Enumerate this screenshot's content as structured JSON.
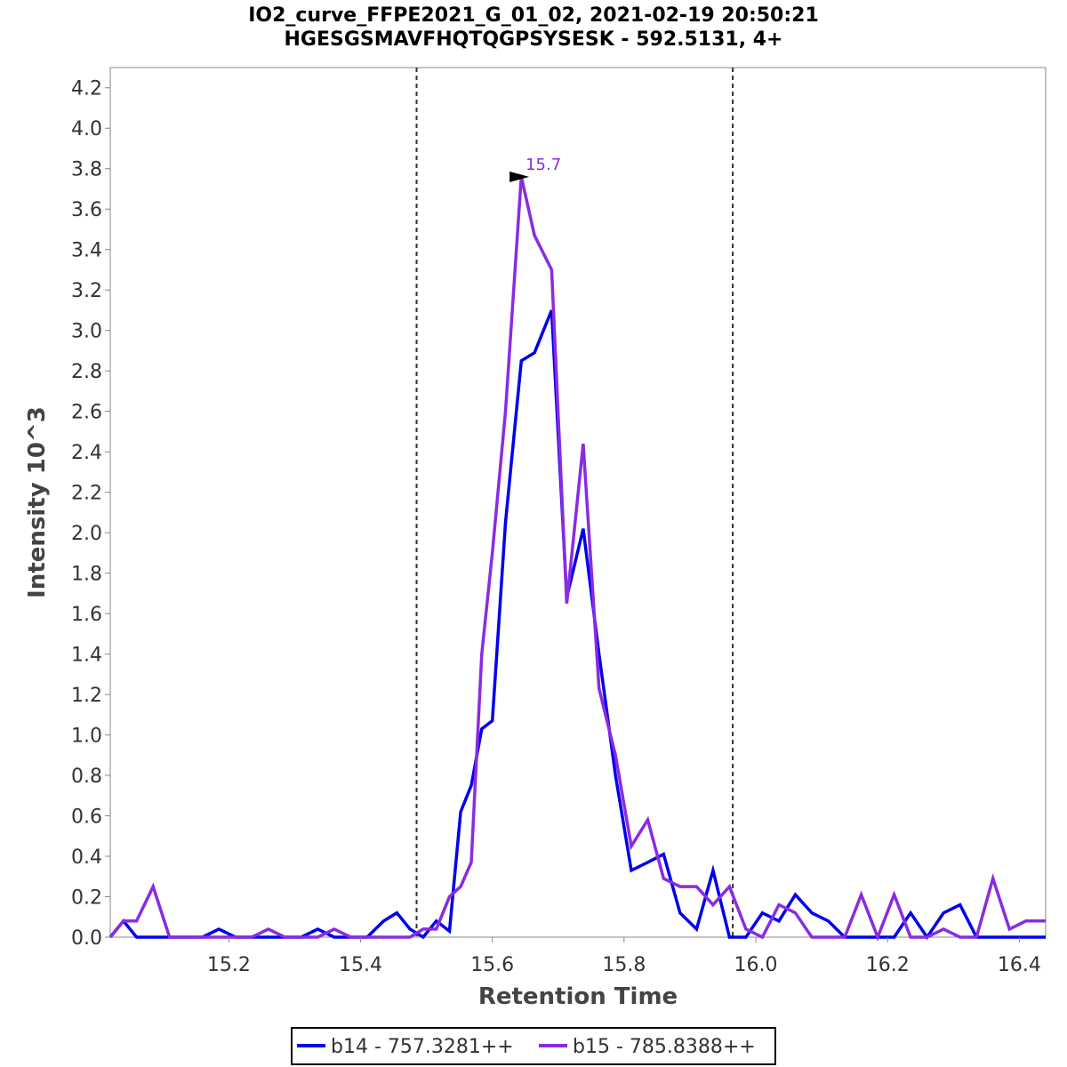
{
  "chart_data": {
    "type": "line",
    "title": "IO2_curve_FFPE2021_G_01_02, 2021-02-19 20:50:21",
    "subtitle": "HGESGSMAVFHQTQGPSYSESK - 592.5131, 4+",
    "xlabel": "Retention Time",
    "ylabel": "Intensity 10^3",
    "xlim": [
      15.02,
      16.44
    ],
    "ylim": [
      0,
      4.3
    ],
    "x_ticks": [
      "15.2",
      "15.4",
      "15.6",
      "15.8",
      "16.0",
      "16.2",
      "16.4"
    ],
    "y_ticks": [
      "0.0",
      "0.2",
      "0.4",
      "0.6",
      "0.8",
      "1.0",
      "1.2",
      "1.4",
      "1.6",
      "1.8",
      "2.0",
      "2.2",
      "2.4",
      "2.6",
      "2.8",
      "3.0",
      "3.2",
      "3.4",
      "3.6",
      "3.8",
      "4.0",
      "4.2"
    ],
    "grid": false,
    "legend_position": "bottom",
    "boundary_lines": [
      15.485,
      15.965
    ],
    "peak_annotation": {
      "label": "15.7",
      "x": 15.664,
      "y": 3.76,
      "color": "#8a2be2"
    },
    "series": [
      {
        "name": "b14 - 757.3281++",
        "color": "#0000ee",
        "points": [
          [
            15.02,
            0.0
          ],
          [
            15.04,
            0.08
          ],
          [
            15.06,
            0.0
          ],
          [
            15.085,
            0.0
          ],
          [
            15.11,
            0.0
          ],
          [
            15.135,
            0.0
          ],
          [
            15.16,
            0.0
          ],
          [
            15.185,
            0.04
          ],
          [
            15.21,
            0.0
          ],
          [
            15.235,
            0.0
          ],
          [
            15.26,
            0.0
          ],
          [
            15.285,
            0.0
          ],
          [
            15.31,
            0.0
          ],
          [
            15.335,
            0.04
          ],
          [
            15.36,
            0.0
          ],
          [
            15.385,
            0.0
          ],
          [
            15.41,
            0.0
          ],
          [
            15.435,
            0.08
          ],
          [
            15.455,
            0.12
          ],
          [
            15.475,
            0.04
          ],
          [
            15.495,
            0.0
          ],
          [
            15.515,
            0.08
          ],
          [
            15.535,
            0.03
          ],
          [
            15.552,
            0.62
          ],
          [
            15.568,
            0.75
          ],
          [
            15.584,
            1.03
          ],
          [
            15.6,
            1.07
          ],
          [
            15.62,
            2.05
          ],
          [
            15.644,
            2.85
          ],
          [
            15.664,
            2.89
          ],
          [
            15.69,
            3.1
          ],
          [
            15.713,
            1.68
          ],
          [
            15.738,
            2.02
          ],
          [
            15.762,
            1.4
          ],
          [
            15.787,
            0.8
          ],
          [
            15.811,
            0.33
          ],
          [
            15.836,
            0.37
          ],
          [
            15.86,
            0.41
          ],
          [
            15.885,
            0.12
          ],
          [
            15.91,
            0.04
          ],
          [
            15.935,
            0.33
          ],
          [
            15.96,
            0.0
          ],
          [
            15.985,
            0.0
          ],
          [
            16.01,
            0.12
          ],
          [
            16.035,
            0.08
          ],
          [
            16.06,
            0.21
          ],
          [
            16.085,
            0.12
          ],
          [
            16.11,
            0.08
          ],
          [
            16.135,
            0.0
          ],
          [
            16.16,
            0.0
          ],
          [
            16.185,
            0.0
          ],
          [
            16.21,
            0.0
          ],
          [
            16.235,
            0.12
          ],
          [
            16.26,
            0.0
          ],
          [
            16.285,
            0.12
          ],
          [
            16.31,
            0.16
          ],
          [
            16.335,
            0.0
          ],
          [
            16.36,
            0.0
          ],
          [
            16.385,
            0.0
          ],
          [
            16.41,
            0.0
          ],
          [
            16.44,
            0.0
          ]
        ]
      },
      {
        "name": "b15 - 785.8388++",
        "color": "#8a2be2",
        "points": [
          [
            15.02,
            0.0
          ],
          [
            15.04,
            0.08
          ],
          [
            15.06,
            0.08
          ],
          [
            15.085,
            0.25
          ],
          [
            15.11,
            0.0
          ],
          [
            15.135,
            0.0
          ],
          [
            15.16,
            0.0
          ],
          [
            15.185,
            0.0
          ],
          [
            15.21,
            0.0
          ],
          [
            15.235,
            0.0
          ],
          [
            15.26,
            0.04
          ],
          [
            15.285,
            0.0
          ],
          [
            15.31,
            0.0
          ],
          [
            15.335,
            0.0
          ],
          [
            15.36,
            0.04
          ],
          [
            15.385,
            0.0
          ],
          [
            15.41,
            0.0
          ],
          [
            15.435,
            0.0
          ],
          [
            15.455,
            0.0
          ],
          [
            15.475,
            0.0
          ],
          [
            15.495,
            0.04
          ],
          [
            15.515,
            0.04
          ],
          [
            15.535,
            0.2
          ],
          [
            15.552,
            0.25
          ],
          [
            15.568,
            0.37
          ],
          [
            15.584,
            1.4
          ],
          [
            15.6,
            1.9
          ],
          [
            15.62,
            2.6
          ],
          [
            15.644,
            3.76
          ],
          [
            15.664,
            3.47
          ],
          [
            15.69,
            3.3
          ],
          [
            15.713,
            1.65
          ],
          [
            15.738,
            2.44
          ],
          [
            15.762,
            1.23
          ],
          [
            15.787,
            0.9
          ],
          [
            15.811,
            0.45
          ],
          [
            15.836,
            0.58
          ],
          [
            15.86,
            0.29
          ],
          [
            15.885,
            0.25
          ],
          [
            15.91,
            0.25
          ],
          [
            15.935,
            0.16
          ],
          [
            15.96,
            0.25
          ],
          [
            15.985,
            0.04
          ],
          [
            16.01,
            0.0
          ],
          [
            16.035,
            0.16
          ],
          [
            16.06,
            0.12
          ],
          [
            16.085,
            0.0
          ],
          [
            16.11,
            0.0
          ],
          [
            16.135,
            0.0
          ],
          [
            16.16,
            0.21
          ],
          [
            16.185,
            0.0
          ],
          [
            16.21,
            0.21
          ],
          [
            16.235,
            0.0
          ],
          [
            16.26,
            0.0
          ],
          [
            16.285,
            0.04
          ],
          [
            16.31,
            0.0
          ],
          [
            16.335,
            0.0
          ],
          [
            16.36,
            0.29
          ],
          [
            16.385,
            0.04
          ],
          [
            16.41,
            0.08
          ],
          [
            16.44,
            0.08
          ]
        ]
      }
    ]
  }
}
